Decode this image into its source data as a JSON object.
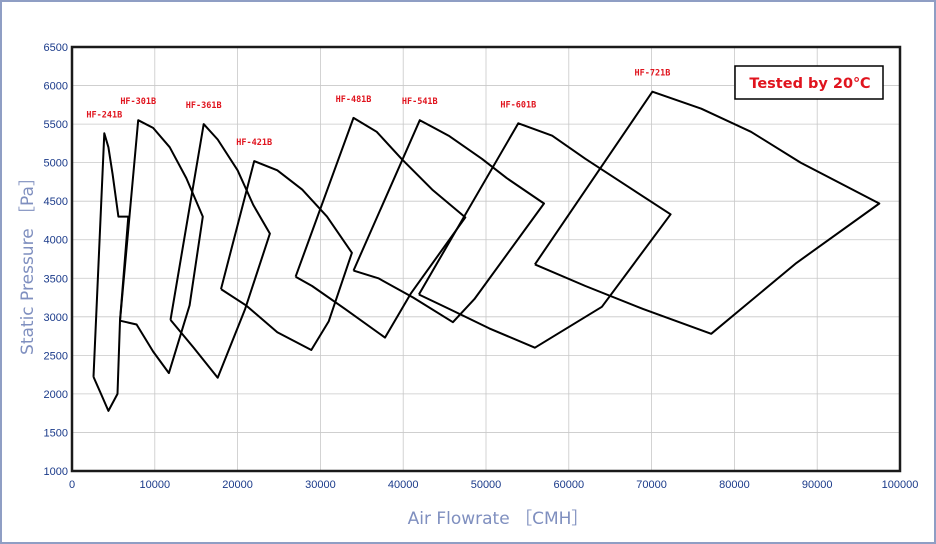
{
  "chart_data": {
    "type": "line",
    "title": "",
    "xlabel": "Air Flowrate ［CMH］",
    "ylabel": "Static Pressure ［Pa］",
    "xlim": [
      0,
      100000
    ],
    "ylim": [
      1000,
      6500
    ],
    "xticks": [
      0,
      10000,
      20000,
      30000,
      40000,
      50000,
      60000,
      70000,
      80000,
      90000,
      100000
    ],
    "yticks": [
      1000,
      1500,
      2000,
      2500,
      3000,
      3500,
      4000,
      4500,
      5000,
      5500,
      6000,
      6500
    ],
    "grid": true,
    "annotation": "Tested by 20℃",
    "colors": {
      "curve": "#000000",
      "label": "#e0141e",
      "grid": "#c8c8c8",
      "tick": "#1a3a8a",
      "axis_title": "#7f8fbf"
    },
    "series": [
      {
        "name": "HF-241B",
        "x": [
          2600,
          3900,
          4400,
          4900,
          5600,
          6800,
          5800,
          5500,
          4400,
          3500,
          2600
        ],
        "y": [
          2220,
          5380,
          5200,
          4850,
          4300,
          4300,
          2950,
          2000,
          1780,
          2000,
          2220
        ]
      },
      {
        "name": "HF-301B",
        "x": [
          5800,
          8000,
          9800,
          11800,
          13800,
          15800,
          14200,
          11700,
          9800,
          7800,
          5800
        ],
        "y": [
          2950,
          5550,
          5450,
          5200,
          4800,
          4300,
          3150,
          2270,
          2550,
          2900,
          2950
        ]
      },
      {
        "name": "HF-361B",
        "x": [
          11900,
          15900,
          17600,
          20000,
          21900,
          23900,
          20900,
          17600,
          14700,
          11900
        ],
        "y": [
          2960,
          5500,
          5300,
          4900,
          4450,
          4080,
          3100,
          2210,
          2600,
          2960
        ]
      },
      {
        "name": "HF-421B",
        "x": [
          18000,
          22000,
          24800,
          27800,
          30800,
          33800,
          31000,
          28900,
          24800,
          21000,
          18000
        ],
        "y": [
          3360,
          5020,
          4900,
          4650,
          4300,
          3830,
          2940,
          2570,
          2800,
          3150,
          3360
        ]
      },
      {
        "name": "HF-481B",
        "x": [
          27000,
          34000,
          36800,
          39800,
          43500,
          47500,
          40900,
          37800,
          33000,
          29000,
          27000
        ],
        "y": [
          3520,
          5580,
          5400,
          5050,
          4650,
          4290,
          3300,
          2730,
          3100,
          3400,
          3520
        ]
      },
      {
        "name": "HF-541B",
        "x": [
          34000,
          42000,
          45500,
          49500,
          52500,
          57000,
          48600,
          46000,
          41200,
          37000,
          34000
        ],
        "y": [
          3600,
          5550,
          5350,
          5050,
          4800,
          4470,
          3230,
          2930,
          3250,
          3500,
          3600
        ]
      },
      {
        "name": "HF-601B",
        "x": [
          41900,
          53900,
          58000,
          62000,
          67000,
          72300,
          64000,
          55900,
          50400,
          45600,
          41900
        ],
        "y": [
          3290,
          5510,
          5350,
          5050,
          4700,
          4330,
          3130,
          2600,
          2850,
          3100,
          3290
        ]
      },
      {
        "name": "HF-721B",
        "x": [
          55900,
          70100,
          76000,
          82000,
          88000,
          97500,
          87500,
          77200,
          69000,
          62000,
          55900
        ],
        "y": [
          3680,
          5920,
          5700,
          5400,
          5000,
          4470,
          3700,
          2780,
          3100,
          3400,
          3680
        ]
      }
    ]
  }
}
